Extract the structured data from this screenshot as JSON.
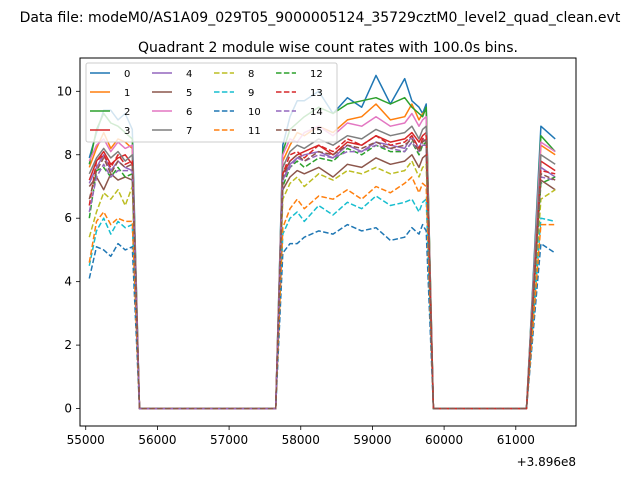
{
  "chart_data": {
    "type": "line",
    "suptitle": "Data file: modeM0/AS1A09_029T05_9000005124_35729cztM0_level2_quad_clean.evt",
    "title": "Quadrant 2 module wise count rates with 100.0s bins.",
    "xlabel": "",
    "ylabel": "",
    "x_offset_label": "+3.896e8",
    "xlim": [
      54920,
      61840
    ],
    "ylim": [
      -0.55,
      11.05
    ],
    "xticks": [
      55000,
      56000,
      57000,
      58000,
      59000,
      60000,
      61000
    ],
    "yticks": [
      0,
      2,
      4,
      6,
      8,
      10
    ],
    "grid": false,
    "legend": {
      "placement": "top-left",
      "columns": 4
    },
    "colors": [
      "#1f77b4",
      "#ff7f0e",
      "#2ca02c",
      "#d62728",
      "#9467bd",
      "#8c564b",
      "#e377c2",
      "#7f7f7f",
      "#bcbd22",
      "#17becf",
      "#1f77b4",
      "#ff7f0e",
      "#2ca02c",
      "#d62728",
      "#9467bd",
      "#8c564b"
    ],
    "series": [
      {
        "name": "0",
        "dashed": false,
        "values": [
          7.9,
          8.7,
          9.4,
          9.4,
          9.1,
          9.3,
          8.8,
          0,
          0,
          8.3,
          9.2,
          9.7,
          9.7,
          10.0,
          9.3,
          9.8,
          9.5,
          10.5,
          9.6,
          10.4,
          9.7,
          9.5,
          9.3,
          9.6,
          0,
          0,
          0,
          8.9,
          8.5
        ]
      },
      {
        "name": "1",
        "dashed": false,
        "values": [
          7.6,
          8.2,
          8.7,
          8.2,
          8.5,
          8.4,
          8.2,
          0,
          0,
          7.8,
          8.3,
          8.7,
          8.6,
          8.9,
          8.7,
          9.1,
          9.2,
          9.6,
          9.1,
          9.2,
          9.6,
          9.1,
          9.3,
          9.4,
          0,
          0,
          0,
          8.3,
          8.0
        ]
      },
      {
        "name": "2",
        "dashed": false,
        "values": [
          7.7,
          8.8,
          9.3,
          9.0,
          8.9,
          8.7,
          8.5,
          0,
          0,
          8.1,
          8.8,
          9.0,
          9.2,
          9.5,
          9.3,
          9.6,
          9.7,
          9.8,
          9.6,
          9.8,
          9.5,
          9.3,
          9.2,
          9.5,
          0,
          0,
          0,
          8.6,
          8.1
        ]
      },
      {
        "name": "3",
        "dashed": false,
        "values": [
          7.2,
          7.8,
          8.1,
          7.7,
          7.9,
          8.0,
          7.7,
          0,
          0,
          7.4,
          7.8,
          8.0,
          8.1,
          8.3,
          8.0,
          8.4,
          8.3,
          8.6,
          8.4,
          8.5,
          8.7,
          8.4,
          8.6,
          8.7,
          0,
          0,
          0,
          7.8,
          7.5
        ]
      },
      {
        "name": "4",
        "dashed": false,
        "values": [
          7.1,
          7.6,
          8.0,
          7.5,
          7.8,
          7.6,
          7.5,
          0,
          0,
          7.2,
          7.7,
          7.9,
          8.0,
          8.1,
          7.9,
          8.3,
          8.1,
          8.4,
          8.3,
          8.2,
          8.6,
          8.2,
          8.5,
          8.4,
          0,
          0,
          0,
          7.6,
          7.3
        ]
      },
      {
        "name": "5",
        "dashed": false,
        "values": [
          7.0,
          7.3,
          6.9,
          7.4,
          7.2,
          7.3,
          7.2,
          0,
          0,
          6.9,
          7.3,
          7.5,
          7.4,
          7.6,
          7.3,
          7.7,
          7.6,
          7.9,
          7.7,
          7.8,
          8.0,
          7.6,
          7.9,
          8.0,
          0,
          0,
          0,
          7.2,
          6.9
        ]
      },
      {
        "name": "6",
        "dashed": false,
        "values": [
          7.8,
          8.3,
          8.5,
          8.1,
          8.4,
          8.2,
          8.3,
          0,
          0,
          8.0,
          8.5,
          8.4,
          8.7,
          8.9,
          8.6,
          9.0,
          8.9,
          9.2,
          8.9,
          9.0,
          9.3,
          8.9,
          9.1,
          9.2,
          0,
          0,
          0,
          8.4,
          8.1
        ]
      },
      {
        "name": "7",
        "dashed": false,
        "values": [
          7.4,
          7.9,
          8.2,
          7.9,
          8.1,
          7.8,
          8.0,
          0,
          0,
          7.6,
          8.1,
          8.3,
          8.2,
          8.5,
          8.3,
          8.6,
          8.5,
          8.8,
          8.6,
          8.7,
          8.9,
          8.5,
          8.8,
          8.9,
          0,
          0,
          0,
          8.0,
          7.7
        ]
      },
      {
        "name": "8",
        "dashed": true,
        "values": [
          5.4,
          6.2,
          6.8,
          6.6,
          6.9,
          6.4,
          7.0,
          0,
          0,
          6.6,
          7.1,
          7.3,
          7.0,
          7.4,
          7.2,
          7.5,
          7.4,
          7.6,
          7.4,
          7.5,
          7.8,
          7.3,
          7.6,
          7.7,
          0,
          0,
          0,
          6.6,
          6.9
        ]
      },
      {
        "name": "9",
        "dashed": true,
        "values": [
          4.5,
          5.6,
          6.0,
          5.5,
          5.9,
          5.7,
          5.8,
          0,
          0,
          5.5,
          6.0,
          6.2,
          5.9,
          6.4,
          6.1,
          6.5,
          6.3,
          6.7,
          6.4,
          6.5,
          6.6,
          6.2,
          6.5,
          6.6,
          0,
          0,
          0,
          6.0,
          5.9
        ]
      },
      {
        "name": "10",
        "dashed": true,
        "values": [
          4.1,
          5.1,
          5.0,
          4.8,
          5.2,
          5.0,
          5.1,
          0,
          0,
          4.9,
          5.2,
          5.2,
          5.4,
          5.6,
          5.5,
          5.8,
          5.6,
          5.7,
          5.3,
          5.4,
          5.7,
          5.5,
          5.8,
          5.6,
          0,
          0,
          0,
          5.2,
          4.9
        ]
      },
      {
        "name": "11",
        "dashed": true,
        "values": [
          4.6,
          5.9,
          6.2,
          5.8,
          6.0,
          5.9,
          5.9,
          0,
          0,
          5.7,
          6.3,
          6.6,
          6.3,
          6.7,
          6.6,
          6.9,
          6.6,
          7.0,
          6.8,
          7.1,
          7.3,
          6.8,
          7.1,
          7.0,
          0,
          0,
          0,
          5.8,
          5.8
        ]
      },
      {
        "name": "12",
        "dashed": true,
        "values": [
          6.0,
          7.5,
          7.6,
          7.3,
          7.6,
          7.3,
          7.4,
          0,
          0,
          7.0,
          7.6,
          7.8,
          7.6,
          7.9,
          7.8,
          8.2,
          8.0,
          8.3,
          8.1,
          8.1,
          8.4,
          8.0,
          8.3,
          8.4,
          0,
          0,
          0,
          7.1,
          7.3
        ]
      },
      {
        "name": "13",
        "dashed": true,
        "values": [
          6.4,
          7.8,
          8.0,
          7.6,
          8.0,
          7.7,
          7.8,
          0,
          0,
          7.4,
          8.0,
          8.1,
          7.9,
          8.3,
          8.1,
          8.5,
          8.3,
          8.6,
          8.3,
          8.4,
          8.6,
          8.2,
          8.5,
          8.6,
          0,
          0,
          0,
          7.5,
          7.4
        ]
      },
      {
        "name": "14",
        "dashed": true,
        "values": [
          6.2,
          7.3,
          7.7,
          7.3,
          7.5,
          7.5,
          7.5,
          0,
          0,
          7.2,
          7.6,
          7.9,
          7.8,
          8.0,
          7.9,
          8.1,
          8.1,
          8.3,
          8.2,
          8.1,
          8.4,
          8.1,
          8.3,
          8.3,
          0,
          0,
          0,
          7.3,
          7.2
        ]
      },
      {
        "name": "15",
        "dashed": true,
        "values": [
          6.6,
          7.5,
          7.9,
          7.4,
          7.8,
          7.6,
          7.7,
          0,
          0,
          7.3,
          7.8,
          8.0,
          7.8,
          8.1,
          8.0,
          8.3,
          8.2,
          8.4,
          8.2,
          8.3,
          8.5,
          8.1,
          8.4,
          8.5,
          0,
          0,
          0,
          7.4,
          7.2
        ]
      }
    ],
    "x": [
      55050,
      55150,
      55250,
      55350,
      55450,
      55550,
      55650,
      55750,
      57650,
      57750,
      57850,
      57950,
      58050,
      58250,
      58450,
      58650,
      58850,
      59050,
      59250,
      59450,
      59550,
      59650,
      59700,
      59750,
      59850,
      59950,
      61150,
      61350,
      61550
    ]
  }
}
